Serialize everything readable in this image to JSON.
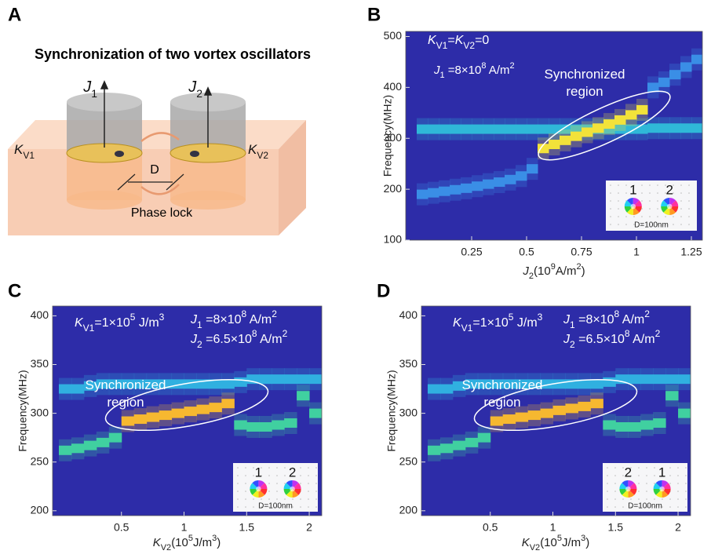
{
  "diagram": {
    "label": "A",
    "title": "Synchronization of two vortex oscillators",
    "j1": [
      {
        "text": "J",
        "style": "italic"
      },
      {
        "text": "1",
        "style": "sub"
      }
    ],
    "j2": [
      {
        "text": "J",
        "style": "italic"
      },
      {
        "text": "2",
        "style": "sub"
      }
    ],
    "kv1": [
      {
        "text": "K",
        "style": "italic"
      },
      {
        "text": "V1",
        "style": "sub"
      }
    ],
    "kv2": [
      {
        "text": "K",
        "style": "italic"
      },
      {
        "text": "V2",
        "style": "sub"
      }
    ],
    "d": "D",
    "phase_lock": "Phase lock"
  },
  "chart_data": [
    {
      "type": "heatmap",
      "panel_label": "B",
      "annotations": [
        [
          {
            "text": "K",
            "style": "italic"
          },
          {
            "text": "V1",
            "style": "sub"
          },
          {
            "text": "="
          },
          {
            "text": "K",
            "style": "italic"
          },
          {
            "text": "V2",
            "style": "sub"
          },
          {
            "text": "=0"
          }
        ],
        [
          {
            "text": "J",
            "style": "italic"
          },
          {
            "text": "1",
            "style": "sub"
          },
          {
            "text": " =8×10"
          },
          {
            "text": "8",
            "style": "sup"
          },
          {
            "text": " A/m"
          },
          {
            "text": "2",
            "style": "sup"
          }
        ],
        [
          {
            "text": "Synchronized"
          }
        ],
        [
          {
            "text": "region"
          }
        ]
      ],
      "inset": {
        "labels": [
          "1",
          "2"
        ],
        "caption": "D=100nm"
      },
      "xlabel": [
        {
          "text": "J",
          "style": "italic"
        },
        {
          "text": "2",
          "style": "sub"
        },
        {
          "text": "(10"
        },
        {
          "text": "9",
          "style": "sup"
        },
        {
          "text": "A/m"
        },
        {
          "text": "2",
          "style": "sup"
        },
        {
          "text": ")"
        }
      ],
      "ylabel": "Frequency(MHz)",
      "x": [
        0.025,
        0.075,
        0.125,
        0.175,
        0.225,
        0.275,
        0.325,
        0.375,
        0.425,
        0.475,
        0.525,
        0.575,
        0.625,
        0.675,
        0.725,
        0.775,
        0.825,
        0.875,
        0.925,
        0.975,
        1.025,
        1.075,
        1.125,
        1.175,
        1.225,
        1.275
      ],
      "series": [
        {
          "color": "#2fb8d8",
          "values": [
            318,
            318,
            318,
            318,
            318,
            318,
            318,
            318,
            318,
            318,
            318,
            318,
            318,
            318,
            318,
            318,
            318,
            318,
            318,
            318,
            318,
            320,
            320,
            320,
            320,
            320
          ]
        },
        {
          "color": "#3a8ee6",
          "values": [
            190,
            193,
            196,
            199,
            202,
            206,
            210,
            214,
            219,
            226,
            240,
            null,
            null,
            null,
            null,
            null,
            null,
            null,
            null,
            null,
            null,
            400,
            410,
            425,
            440,
            455
          ]
        },
        {
          "color": "#f2e23a",
          "values": [
            null,
            null,
            null,
            null,
            null,
            null,
            null,
            null,
            null,
            null,
            null,
            280,
            288,
            296,
            304,
            312,
            320,
            328,
            336,
            346,
            356,
            null,
            null,
            null,
            null,
            null
          ]
        }
      ],
      "xlim": [
        -0.05,
        1.3
      ],
      "ylim": [
        100,
        510
      ],
      "xticks": [
        0.25,
        0.5,
        0.75,
        1,
        1.25
      ],
      "yticks": [
        100,
        200,
        300,
        400,
        500
      ]
    },
    {
      "type": "heatmap",
      "panel_label": "C",
      "annotations": [
        [
          {
            "text": "K",
            "style": "italic"
          },
          {
            "text": "V1",
            "style": "sub"
          },
          {
            "text": "=1×10"
          },
          {
            "text": "5",
            "style": "sup"
          },
          {
            "text": " J/m"
          },
          {
            "text": "3",
            "style": "sup"
          }
        ],
        [
          {
            "text": "J",
            "style": "italic"
          },
          {
            "text": "1",
            "style": "sub"
          },
          {
            "text": " =8×10"
          },
          {
            "text": "8",
            "style": "sup"
          },
          {
            "text": " A/m"
          },
          {
            "text": "2",
            "style": "sup"
          }
        ],
        [
          {
            "text": "J",
            "style": "italic"
          },
          {
            "text": "2",
            "style": "sub"
          },
          {
            "text": " =6.5×10"
          },
          {
            "text": "8",
            "style": "sup"
          },
          {
            "text": " A/m"
          },
          {
            "text": "2",
            "style": "sup"
          }
        ],
        [
          {
            "text": "Synchronized"
          }
        ],
        [
          {
            "text": "region"
          }
        ]
      ],
      "inset": {
        "labels": [
          "1",
          "2"
        ],
        "caption": "D=100nm"
      },
      "xlabel": [
        {
          "text": "K",
          "style": "italic"
        },
        {
          "text": "V2",
          "style": "sub"
        },
        {
          "text": "(10"
        },
        {
          "text": "5",
          "style": "sup"
        },
        {
          "text": "J/m"
        },
        {
          "text": "3",
          "style": "sup"
        },
        {
          "text": ")"
        }
      ],
      "ylabel": "Frequency(MHz)",
      "x": [
        0.05,
        0.15,
        0.25,
        0.35,
        0.45,
        0.55,
        0.65,
        0.75,
        0.85,
        0.95,
        1.05,
        1.15,
        1.25,
        1.35,
        1.45,
        1.55,
        1.65,
        1.75,
        1.85,
        1.95,
        2.05
      ],
      "series": [
        {
          "color": "#30b0e0",
          "values": [
            325,
            325,
            328,
            330,
            330,
            330,
            330,
            330,
            330,
            330,
            330,
            330,
            330,
            330,
            332,
            335,
            335,
            335,
            335,
            335,
            335
          ]
        },
        {
          "color": "#40d0a0",
          "values": [
            262,
            264,
            267,
            270,
            275,
            null,
            null,
            null,
            null,
            null,
            null,
            null,
            null,
            null,
            288,
            286,
            286,
            288,
            290,
            318,
            300
          ]
        },
        {
          "color": "#f6b830",
          "values": [
            null,
            null,
            null,
            null,
            null,
            292,
            294,
            296,
            298,
            300,
            302,
            304,
            306,
            310,
            null,
            null,
            null,
            null,
            null,
            null,
            null
          ]
        }
      ],
      "xlim": [
        -0.05,
        2.1
      ],
      "ylim": [
        195,
        410
      ],
      "xticks": [
        0.5,
        1,
        1.5,
        2
      ],
      "yticks": [
        200,
        250,
        300,
        350,
        400
      ]
    },
    {
      "type": "heatmap",
      "panel_label": "D",
      "annotations": [
        [
          {
            "text": "K",
            "style": "italic"
          },
          {
            "text": "V1",
            "style": "sub"
          },
          {
            "text": "=1×10"
          },
          {
            "text": "5",
            "style": "sup"
          },
          {
            "text": " J/m"
          },
          {
            "text": "3",
            "style": "sup"
          }
        ],
        [
          {
            "text": "J",
            "style": "italic"
          },
          {
            "text": "1",
            "style": "sub"
          },
          {
            "text": " =8×10"
          },
          {
            "text": "8",
            "style": "sup"
          },
          {
            "text": " A/m"
          },
          {
            "text": "2",
            "style": "sup"
          }
        ],
        [
          {
            "text": "J",
            "style": "italic"
          },
          {
            "text": "2",
            "style": "sub"
          },
          {
            "text": " =6.5×10"
          },
          {
            "text": "8",
            "style": "sup"
          },
          {
            "text": " A/m"
          },
          {
            "text": "2",
            "style": "sup"
          }
        ],
        [
          {
            "text": "Synchronized"
          }
        ],
        [
          {
            "text": "region"
          }
        ]
      ],
      "inset": {
        "labels": [
          "2",
          "1"
        ],
        "caption": "D=100nm"
      },
      "xlabel": [
        {
          "text": "K",
          "style": "italic"
        },
        {
          "text": "V2",
          "style": "sub"
        },
        {
          "text": "(10"
        },
        {
          "text": "5",
          "style": "sup"
        },
        {
          "text": "J/m"
        },
        {
          "text": "3",
          "style": "sup"
        },
        {
          "text": ")"
        }
      ],
      "ylabel": "Frequency(MHz)",
      "x": [
        0.05,
        0.15,
        0.25,
        0.35,
        0.45,
        0.55,
        0.65,
        0.75,
        0.85,
        0.95,
        1.05,
        1.15,
        1.25,
        1.35,
        1.45,
        1.55,
        1.65,
        1.75,
        1.85,
        1.95,
        2.05
      ],
      "series": [
        {
          "color": "#30b0e0",
          "values": [
            325,
            325,
            328,
            330,
            330,
            330,
            330,
            330,
            330,
            330,
            330,
            330,
            330,
            330,
            332,
            335,
            335,
            335,
            335,
            335,
            335
          ]
        },
        {
          "color": "#40d0a0",
          "values": [
            262,
            264,
            267,
            270,
            275,
            null,
            null,
            null,
            null,
            null,
            null,
            null,
            null,
            null,
            288,
            286,
            286,
            288,
            290,
            318,
            300
          ]
        },
        {
          "color": "#f6b830",
          "values": [
            null,
            null,
            null,
            null,
            null,
            292,
            294,
            296,
            298,
            300,
            303,
            305,
            307,
            310,
            null,
            null,
            null,
            null,
            null,
            null,
            null
          ]
        }
      ],
      "xlim": [
        -0.05,
        2.1
      ],
      "ylim": [
        195,
        410
      ],
      "xticks": [
        0.5,
        1,
        1.5,
        2
      ],
      "yticks": [
        200,
        250,
        300,
        350,
        400
      ]
    }
  ]
}
